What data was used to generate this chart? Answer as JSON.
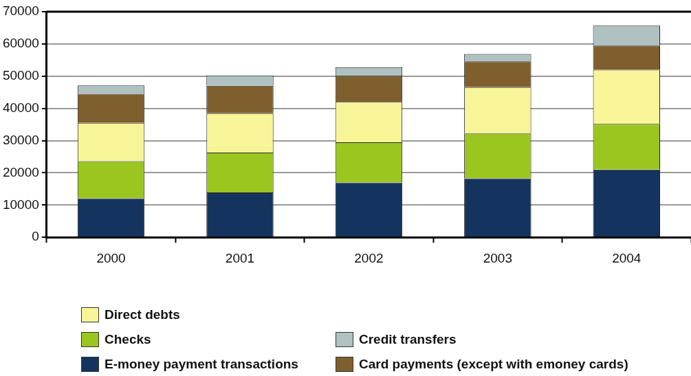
{
  "chart_data": {
    "type": "bar",
    "stacked": true,
    "categories": [
      "2000",
      "2001",
      "2002",
      "2003",
      "2004"
    ],
    "series": [
      {
        "name": "E-money payment transactions",
        "color": "#14345f",
        "values": [
          12100,
          13900,
          17000,
          18300,
          21000
        ]
      },
      {
        "name": "Checks",
        "color": "#9bc620",
        "values": [
          11500,
          12400,
          12500,
          13900,
          14200
        ]
      },
      {
        "name": "Direct debts",
        "color": "#f7f597",
        "values": [
          11900,
          12200,
          12500,
          14400,
          16800
        ]
      },
      {
        "name": "Card payments (except with emoney cards)",
        "color": "#7f5f2e",
        "values": [
          9000,
          8500,
          8100,
          8000,
          7500
        ]
      },
      {
        "name": "Credit transfers",
        "color": "#afc2c1",
        "values": [
          2600,
          3200,
          2700,
          2300,
          6200
        ]
      }
    ],
    "ylim": [
      0,
      70000
    ],
    "yticks": [
      0,
      10000,
      20000,
      30000,
      40000,
      50000,
      60000,
      70000
    ],
    "grid": "y",
    "legend": "bottom"
  }
}
